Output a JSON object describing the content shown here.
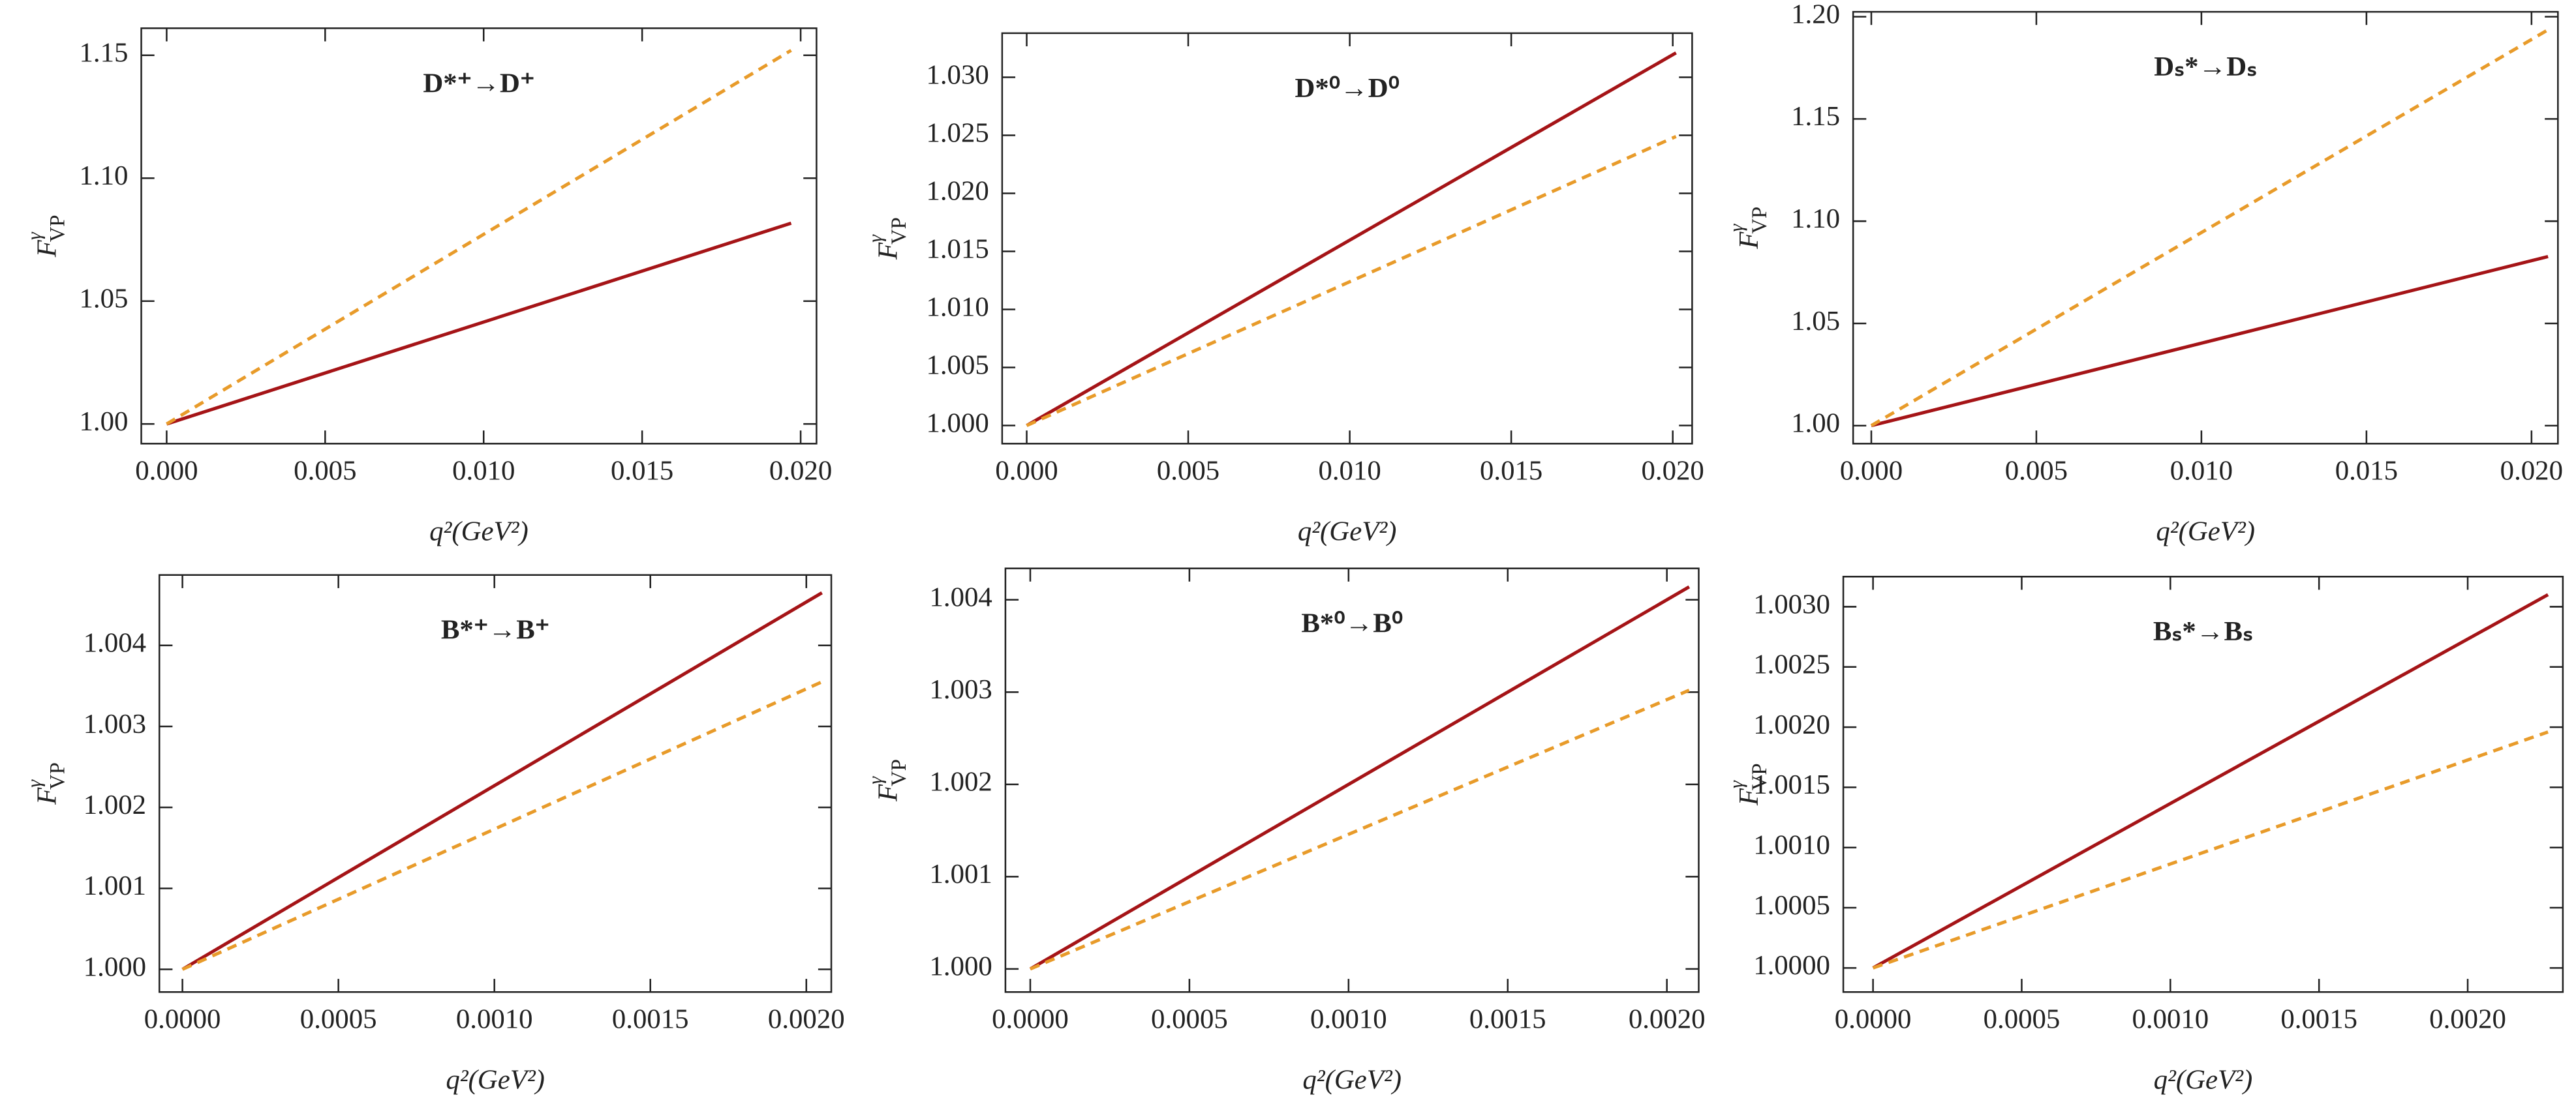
{
  "chart_data": [
    {
      "type": "line",
      "title": "D*⁺→D⁺",
      "x_label": "q²(GeV²)",
      "y_label": {
        "base": "F",
        "sup": "γ",
        "sub": "VP"
      },
      "xlim": [
        -0.0008,
        0.0205
      ],
      "ylim": [
        0.992,
        1.161
      ],
      "xticks": [
        {
          "value": 0,
          "label": "0.000"
        },
        {
          "value": 0.005,
          "label": "0.005"
        },
        {
          "value": 0.01,
          "label": "0.010"
        },
        {
          "value": 0.015,
          "label": "0.015"
        },
        {
          "value": 0.02,
          "label": "0.020"
        }
      ],
      "yticks": [
        {
          "value": 1,
          "label": "1.00"
        },
        1.05,
        {
          "value": 1.1,
          "label": "1.10"
        },
        1.15
      ],
      "series": [
        {
          "color": "#a51417",
          "style": "solid",
          "x": [
            0,
            0.0197
          ],
          "values": [
            1,
            1.0817
          ]
        },
        {
          "color": "#e89b2a",
          "style": "dashed",
          "x": [
            0,
            0.0197
          ],
          "values": [
            1,
            1.152
          ]
        }
      ]
    },
    {
      "type": "line",
      "title": "D*⁰→D⁰",
      "x_label": "q²(GeV²)",
      "y_label": {
        "base": "F",
        "sup": "γ",
        "sub": "VP"
      },
      "xlim": [
        -0.00076,
        0.0206
      ],
      "ylim": [
        0.99844,
        1.0338
      ],
      "xticks": [
        {
          "value": 0,
          "label": "0.000"
        },
        {
          "value": 0.005,
          "label": "0.005"
        },
        {
          "value": 0.01,
          "label": "0.010"
        },
        {
          "value": 0.015,
          "label": "0.015"
        },
        {
          "value": 0.02,
          "label": "0.020"
        }
      ],
      "yticks": [
        {
          "value": 1,
          "label": "1.000"
        },
        1.005,
        {
          "value": 1.01,
          "label": "1.010"
        },
        1.015,
        {
          "value": 1.02,
          "label": "1.020"
        },
        1.025,
        {
          "value": 1.03,
          "label": "1.030"
        }
      ],
      "series": [
        {
          "color": "#a51417",
          "style": "solid",
          "x": [
            0,
            0.0201
          ],
          "values": [
            1,
            1.0321
          ]
        },
        {
          "color": "#e89b2a",
          "style": "dashed",
          "x": [
            0,
            0.0201
          ],
          "values": [
            1,
            1.0249
          ]
        }
      ]
    },
    {
      "type": "line",
      "title": "Dₛ*→Dₛ",
      "x_label": "q²(GeV²)",
      "y_label": {
        "base": "F",
        "sup": "γ",
        "sub": "VP"
      },
      "xlim": [
        -0.00055,
        0.0208
      ],
      "ylim": [
        0.9912,
        1.2024
      ],
      "xticks": [
        {
          "value": 0,
          "label": "0.000"
        },
        {
          "value": 0.005,
          "label": "0.005"
        },
        {
          "value": 0.01,
          "label": "0.010"
        },
        {
          "value": 0.015,
          "label": "0.015"
        },
        {
          "value": 0.02,
          "label": "0.020"
        }
      ],
      "yticks": [
        {
          "value": 1,
          "label": "1.00"
        },
        1.05,
        {
          "value": 1.1,
          "label": "1.10"
        },
        1.15,
        {
          "value": 1.2,
          "label": "1.20"
        }
      ],
      "series": [
        {
          "color": "#a51417",
          "style": "solid",
          "x": [
            0,
            0.0205
          ],
          "values": [
            1,
            1.0827
          ]
        },
        {
          "color": "#e89b2a",
          "style": "dashed",
          "x": [
            0,
            0.0205
          ],
          "values": [
            1,
            1.1936
          ]
        }
      ]
    },
    {
      "type": "line",
      "title": "B*⁺→B⁺",
      "x_label": "q²(GeV²)",
      "y_label": {
        "base": "F",
        "sup": "γ",
        "sub": "VP"
      },
      "xlim": [
        -7.4e-05,
        0.00208
      ],
      "ylim": [
        0.99972,
        1.00487
      ],
      "xticks": [
        {
          "value": 0,
          "label": "0.0000"
        },
        {
          "value": 0.0005,
          "label": "0.0005"
        },
        {
          "value": 0.001,
          "label": "0.0010"
        },
        {
          "value": 0.0015,
          "label": "0.0015"
        },
        {
          "value": 0.002,
          "label": "0.0020"
        }
      ],
      "yticks": [
        {
          "value": 1,
          "label": "1.000"
        },
        1.001,
        1.002,
        1.003,
        1.004
      ],
      "series": [
        {
          "color": "#a51417",
          "style": "solid",
          "x": [
            0,
            0.00205
          ],
          "values": [
            1,
            1.00465
          ]
        },
        {
          "color": "#e89b2a",
          "style": "dashed",
          "x": [
            0,
            0.00205
          ],
          "values": [
            1,
            1.00355
          ]
        }
      ]
    },
    {
      "type": "line",
      "title": "B*⁰→B⁰",
      "x_label": "q²(GeV²)",
      "y_label": {
        "base": "F",
        "sup": "γ",
        "sub": "VP"
      },
      "xlim": [
        -7.8e-05,
        0.0021
      ],
      "ylim": [
        0.99975,
        1.00434
      ],
      "xticks": [
        {
          "value": 0,
          "label": "0.0000"
        },
        {
          "value": 0.0005,
          "label": "0.0005"
        },
        {
          "value": 0.001,
          "label": "0.0010"
        },
        {
          "value": 0.0015,
          "label": "0.0015"
        },
        {
          "value": 0.002,
          "label": "0.0020"
        }
      ],
      "yticks": [
        {
          "value": 1,
          "label": "1.000"
        },
        1.001,
        1.002,
        1.003,
        1.004
      ],
      "series": [
        {
          "color": "#a51417",
          "style": "solid",
          "x": [
            0,
            0.00207
          ],
          "values": [
            1,
            1.00414
          ]
        },
        {
          "color": "#e89b2a",
          "style": "dashed",
          "x": [
            0,
            0.00207
          ],
          "values": [
            1,
            1.00302
          ]
        }
      ]
    },
    {
      "type": "line",
      "title": "Bₛ*→Bₛ",
      "x_label": "q²(GeV²)",
      "y_label": {
        "base": "F",
        "sup": "γ",
        "sub": "VP"
      },
      "xlim": [
        -0.0001,
        0.00232
      ],
      "ylim": [
        0.9998,
        1.00325
      ],
      "xticks": [
        {
          "value": 0,
          "label": "0.0000"
        },
        {
          "value": 0.0005,
          "label": "0.0005"
        },
        {
          "value": 0.001,
          "label": "0.0010"
        },
        {
          "value": 0.0015,
          "label": "0.0015"
        },
        {
          "value": 0.002,
          "label": "0.0020"
        }
      ],
      "yticks": [
        {
          "value": 1,
          "label": "1.0000"
        },
        1.0005,
        {
          "value": 1.001,
          "label": "1.0010"
        },
        1.0015,
        {
          "value": 1.002,
          "label": "1.0020"
        },
        1.0025,
        {
          "value": 1.003,
          "label": "1.0030"
        }
      ],
      "series": [
        {
          "color": "#a51417",
          "style": "solid",
          "x": [
            0,
            0.00227
          ],
          "values": [
            1,
            1.0031
          ]
        },
        {
          "color": "#e89b2a",
          "style": "dashed",
          "x": [
            0,
            0.00227
          ],
          "values": [
            1,
            1.00196
          ]
        }
      ]
    }
  ]
}
